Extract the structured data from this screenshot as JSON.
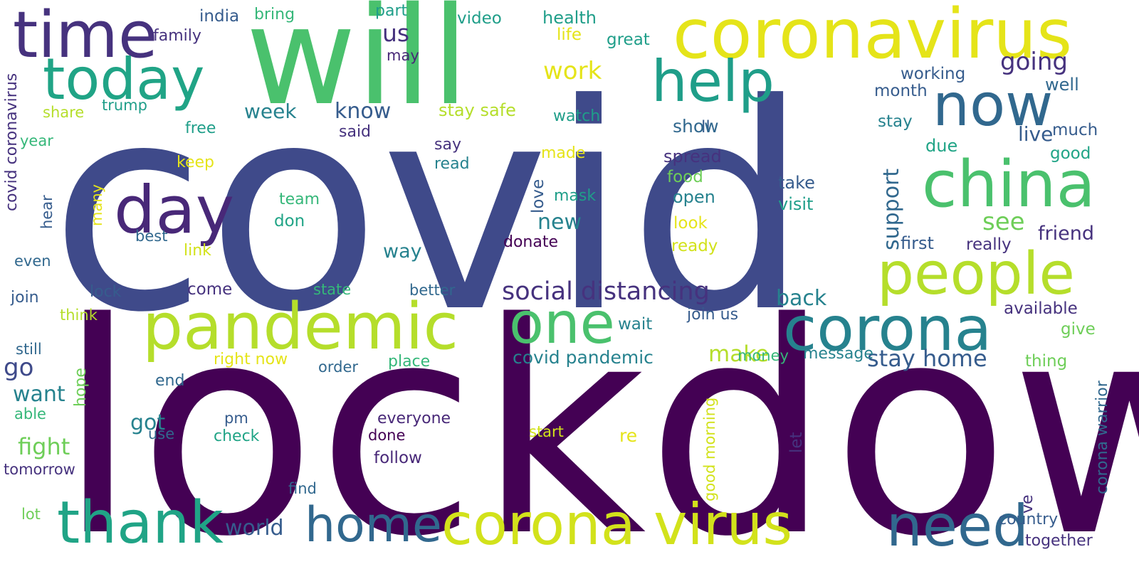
{
  "palette": {
    "background": "#ffffff",
    "navy": "#3f4a8a",
    "purple": "#440154",
    "teal": "#26828e",
    "green": "#4ac16d",
    "yellow": "#e5e419"
  },
  "words": [
    "covid",
    "lockdown",
    "will",
    "coronavirus",
    "time",
    "today",
    "help",
    "now",
    "china",
    "day",
    "people",
    "pandemic",
    "one",
    "corona",
    "thank",
    "home",
    "corona virus",
    "need",
    "social distancing",
    "work",
    "us",
    "going",
    "stay home",
    "make",
    "covid pandemic",
    "world",
    "back",
    "know",
    "week",
    "new",
    "see",
    "way",
    "go",
    "want",
    "fight",
    "got",
    "wait",
    "live",
    "friend",
    "money",
    "country",
    "together",
    "working",
    "month",
    "well",
    "stay",
    "due",
    "much",
    "good",
    "ll",
    "show",
    "spread",
    "food",
    "open",
    "look",
    "ready",
    "take",
    "visit",
    "first",
    "really",
    "available",
    "give",
    "thing",
    "message",
    "health",
    "part",
    "video",
    "life",
    "great",
    "may",
    "india",
    "bring",
    "family",
    "trump",
    "share",
    "stay safe",
    "watch",
    "said",
    "say",
    "read",
    "made",
    "mask",
    "free",
    "year",
    "keep",
    "team",
    "don",
    "best",
    "link",
    "even",
    "join",
    "lock",
    "think",
    "come",
    "state",
    "better",
    "donate",
    "still",
    "right now",
    "order",
    "place",
    "end",
    "able",
    "pm",
    "check",
    "use",
    "everyone",
    "done",
    "follow",
    "start",
    "re",
    "tomorrow",
    "find",
    "lot",
    "support",
    "covid coronavirus",
    "hear",
    "many",
    "love",
    "hope",
    "let",
    "good morning",
    "corona warrior",
    "ve",
    "join us"
  ]
}
